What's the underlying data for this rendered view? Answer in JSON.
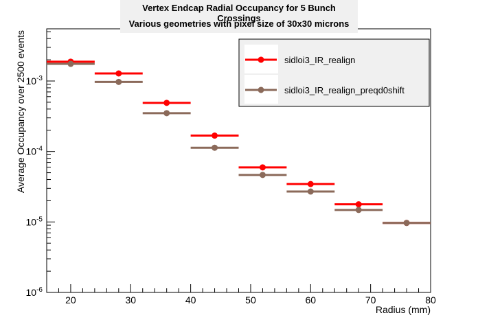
{
  "chart_data": {
    "type": "scatter",
    "title": "Vertex Endcap Radial Occupancy for 5 Bunch Crossings",
    "subtitle": "Various geometries with pixel size of 30x30 microns",
    "xlabel": "Radius (mm)",
    "ylabel": "Average Occupancy over 2500 events",
    "xlim": [
      16,
      80
    ],
    "ylim": [
      1e-06,
      0.0055
    ],
    "yscale": "log",
    "x_ticks": [
      "20",
      "30",
      "40",
      "50",
      "60",
      "70",
      "80"
    ],
    "y_ticks": [
      {
        "base": "10",
        "exp": "-6",
        "value": 1e-06
      },
      {
        "base": "10",
        "exp": "-5",
        "value": 1e-05
      },
      {
        "base": "10",
        "exp": "-4",
        "value": 0.0001
      },
      {
        "base": "10",
        "exp": "-3",
        "value": 0.001
      }
    ],
    "legend_position": "top-right",
    "series": [
      {
        "name": "sidloi3_IR_realign",
        "color": "#ff0000",
        "x": [
          20,
          28,
          36,
          44,
          52,
          60,
          68,
          76
        ],
        "x_err": [
          4,
          4,
          4,
          4,
          4,
          4,
          4,
          4
        ],
        "y": [
          0.00188,
          0.00128,
          0.00049,
          0.000168,
          5.95e-05,
          3.45e-05,
          1.78e-05,
          9.7e-06
        ]
      },
      {
        "name": "sidloi3_IR_realign_preqd0shift",
        "color": "#8b6a5a",
        "x": [
          20,
          28,
          36,
          44,
          52,
          60,
          68,
          76
        ],
        "x_err": [
          4,
          4,
          4,
          4,
          4,
          4,
          4,
          4
        ],
        "y": [
          0.00175,
          0.00097,
          0.00035,
          0.000113,
          4.65e-05,
          2.7e-05,
          1.48e-05,
          9.7e-06
        ]
      }
    ]
  }
}
